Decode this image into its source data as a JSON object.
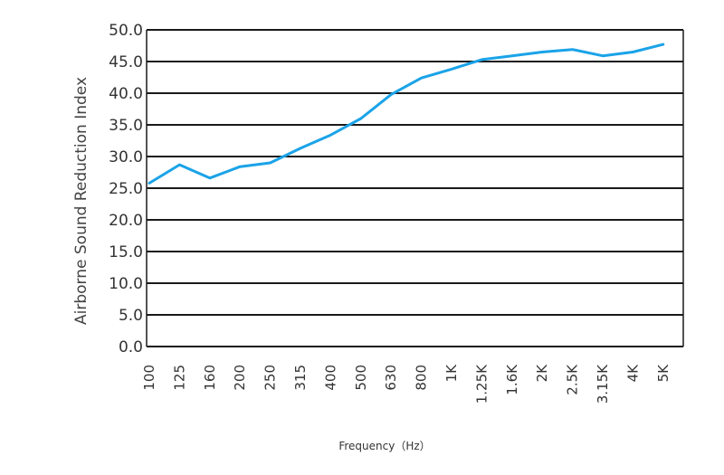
{
  "chart_data": {
    "type": "line",
    "title": "",
    "xlabel": "Frequency（Hz）",
    "ylabel": "Airborne Sound Reduction Index",
    "ylim": [
      0,
      50
    ],
    "grid": "horizontal",
    "categories": [
      "100",
      "125",
      "160",
      "200",
      "250",
      "315",
      "400",
      "500",
      "630",
      "800",
      "1K",
      "1.25K",
      "1.6K",
      "2K",
      "2.5K",
      "3.15K",
      "4K",
      "5K"
    ],
    "y_tick_labels": [
      "0.0",
      "5.0",
      "10.0",
      "15.0",
      "20.0",
      "25.0",
      "30.0",
      "35.0",
      "40.0",
      "45.0",
      "50.0"
    ],
    "series": [
      {
        "values": [
          25.8,
          28.7,
          26.6,
          28.4,
          29.0,
          31.3,
          33.4,
          36.0,
          39.8,
          42.4,
          43.8,
          45.3,
          45.9,
          46.5,
          46.9,
          45.9,
          46.5,
          47.7
        ],
        "color": "#1aa3e8"
      }
    ],
    "colors": {
      "line": "#1aa3e8",
      "grid": "#1a1a1a",
      "axis": "#1a1a1a"
    }
  }
}
